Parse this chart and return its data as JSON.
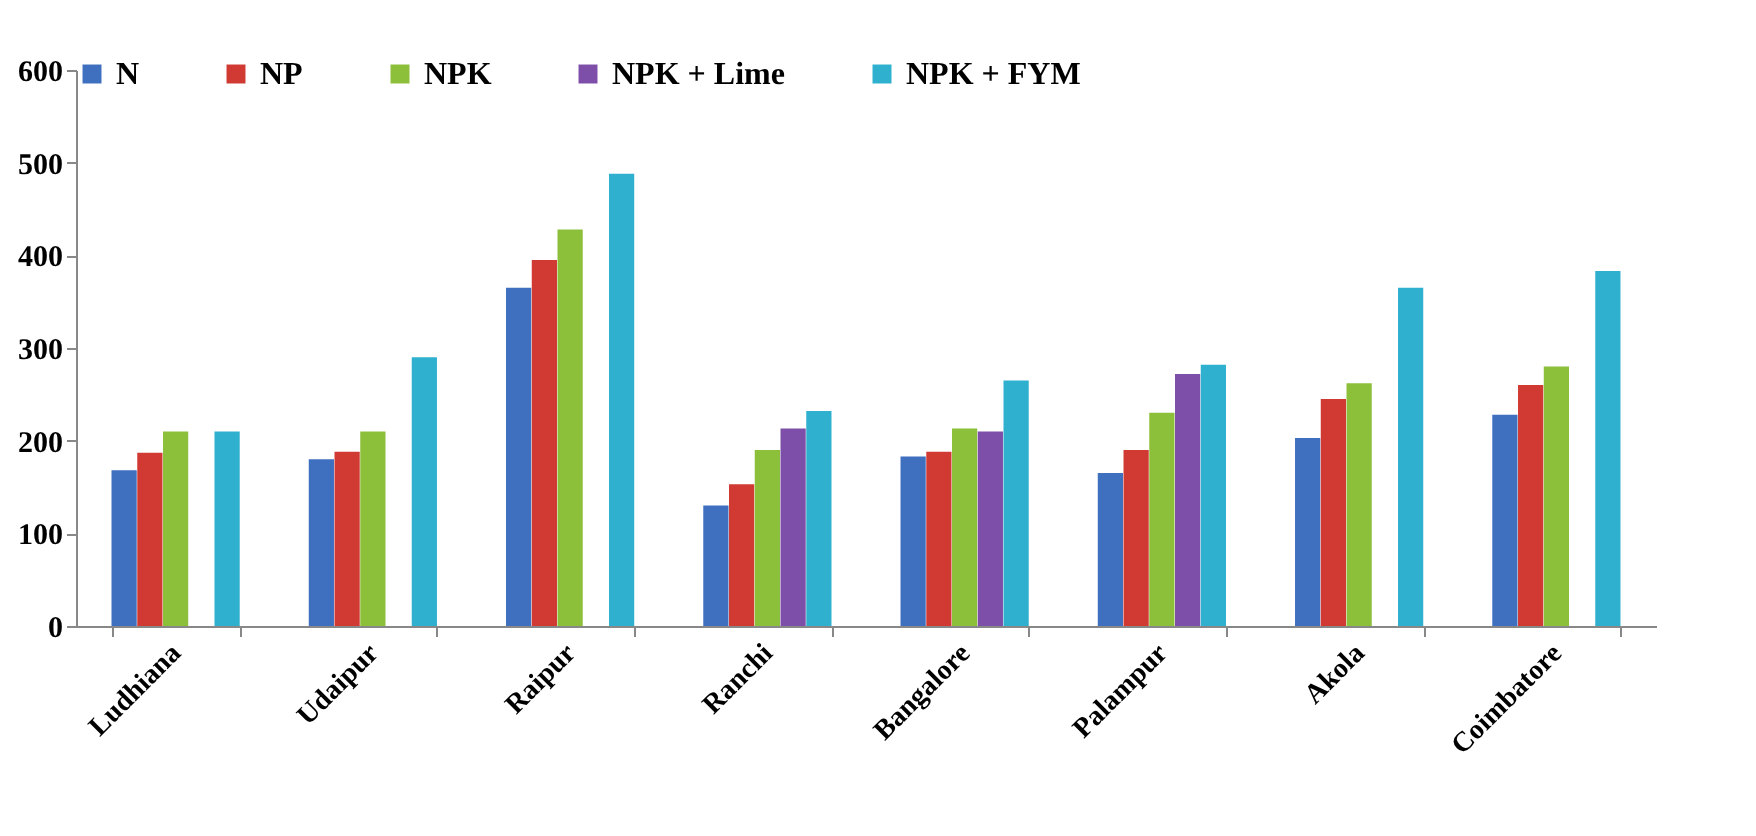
{
  "chart_data": {
    "type": "bar",
    "categories": [
      "Ludhiana",
      "Udaipur",
      "Raipur",
      "Ranchi",
      "Bangalore",
      "Palampur",
      "Akola",
      "Coimbatore"
    ],
    "series": [
      {
        "name": "N",
        "color": "#3f6fbf",
        "values": [
          168,
          180,
          365,
          130,
          183,
          165,
          203,
          228
        ]
      },
      {
        "name": "NP",
        "color": "#d03a33",
        "values": [
          187,
          188,
          395,
          153,
          188,
          190,
          245,
          260
        ]
      },
      {
        "name": "NPK",
        "color": "#8cbf3a",
        "values": [
          210,
          210,
          428,
          190,
          213,
          230,
          262,
          280
        ]
      },
      {
        "name": "NPK + Lime",
        "color": "#7e4fa8",
        "values": [
          null,
          null,
          null,
          213,
          210,
          272,
          null,
          null
        ]
      },
      {
        "name": "NPK + FYM",
        "color": "#2fb0cf",
        "values": [
          210,
          290,
          488,
          232,
          265,
          282,
          365,
          383
        ]
      }
    ],
    "ylim": [
      0,
      600
    ],
    "yticks": [
      0,
      100,
      200,
      300,
      400,
      500,
      600
    ],
    "grid": false,
    "legend": "top"
  }
}
